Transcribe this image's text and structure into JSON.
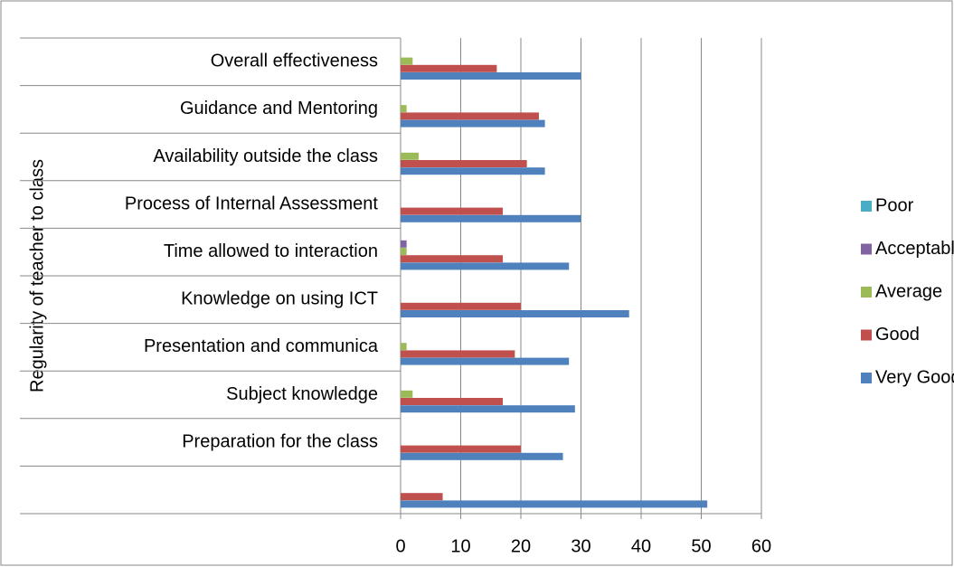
{
  "chart_data": {
    "type": "hbar",
    "y_label": "Regularity of teacher  to class",
    "categories": [
      null,
      "Preparation for the class",
      "Subject knowledge",
      "Presentation  and communica",
      "Knowledge on using ICT",
      "Time allowed to interaction",
      "Process of Internal Assessment",
      "Availability outside the      class",
      "Guidance and Mentoring",
      "Overall effectiveness"
    ],
    "series": [
      {
        "name": "Very Good",
        "color": "#4f81bd",
        "values": [
          51,
          27,
          29,
          28,
          38,
          28,
          30,
          24,
          24,
          30
        ]
      },
      {
        "name": "Good",
        "color": "#c0504d",
        "values": [
          7,
          20,
          17,
          19,
          20,
          17,
          17,
          21,
          23,
          16
        ]
      },
      {
        "name": "Average",
        "color": "#9bbb59",
        "values": [
          0,
          0,
          2,
          1,
          0,
          1,
          0,
          3,
          1,
          2
        ]
      },
      {
        "name": "Acceptable",
        "color": "#8064a2",
        "values": [
          0,
          0,
          0,
          0,
          0,
          1,
          0,
          0,
          0,
          0
        ]
      },
      {
        "name": "Poor",
        "color": "#4bacc6",
        "values": [
          0,
          0,
          0,
          0,
          0,
          0,
          0,
          0,
          0,
          0
        ]
      }
    ],
    "xlim": [
      0,
      60
    ],
    "xticks": [
      0,
      10,
      20,
      30,
      40,
      50,
      60
    ],
    "grid": true,
    "legend": "right"
  }
}
